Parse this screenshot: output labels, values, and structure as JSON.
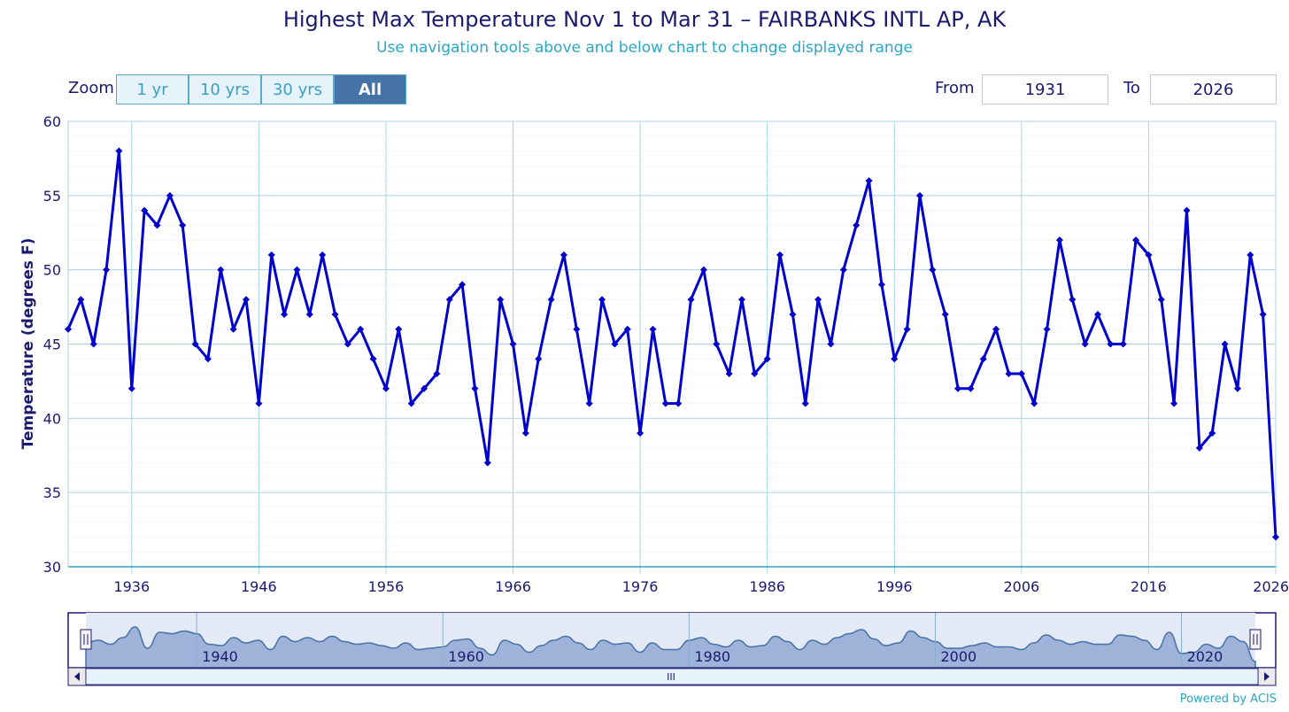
{
  "header": {
    "title": "Highest Max Temperature Nov 1 to Mar 31 – FAIRBANKS INTL AP, AK",
    "subtitle": "Use navigation tools above and below chart to change displayed range"
  },
  "zoom": {
    "label": "Zoom",
    "buttons": [
      "1 yr",
      "10 yrs",
      "30 yrs",
      "All"
    ],
    "active": "All"
  },
  "range": {
    "from_label": "From",
    "from_value": "1931",
    "to_label": "To",
    "to_value": "2026"
  },
  "navigator": {
    "labels": [
      "1940",
      "1960",
      "1980",
      "2000",
      "2020"
    ],
    "scroll_grip": "III"
  },
  "footer": {
    "credit": "Powered by ACIS"
  },
  "colors": {
    "series": "#0000cc",
    "navigator_fill": "#9fb3d9",
    "grid": "#a8d4e6"
  },
  "chart_data": {
    "type": "line",
    "title": "Highest Max Temperature Nov 1 to Mar 31 – FAIRBANKS INTL AP, AK",
    "ylabel": "Temperature (degrees F)",
    "xlabel": "",
    "ylim": [
      30,
      60
    ],
    "xlim": [
      1931,
      2026
    ],
    "yticks": [
      30,
      35,
      40,
      45,
      50,
      55,
      60
    ],
    "xticks": [
      1936,
      1946,
      1956,
      1966,
      1976,
      1986,
      1996,
      2006,
      2016,
      2026
    ],
    "grid": true,
    "legend": "none",
    "series": [
      {
        "x": [
          1931,
          1932,
          1933,
          1934,
          1935,
          1936,
          1937,
          1938,
          1939,
          1940,
          1941,
          1942,
          1943,
          1944,
          1945,
          1946,
          1947,
          1948,
          1949,
          1950,
          1951,
          1952,
          1953,
          1954,
          1955,
          1956,
          1957,
          1958,
          1959,
          1960,
          1961,
          1962,
          1963,
          1964,
          1965,
          1966,
          1967,
          1968,
          1969,
          1970,
          1971,
          1972,
          1973,
          1974,
          1975,
          1976,
          1977,
          1978,
          1979,
          1980,
          1981,
          1982,
          1983,
          1984,
          1985,
          1986,
          1987,
          1988,
          1989,
          1990,
          1991,
          1992,
          1993,
          1994,
          1995,
          1996,
          1997,
          1998,
          1999,
          2000,
          2001,
          2002,
          2003,
          2004,
          2005,
          2006,
          2007,
          2008,
          2009,
          2010,
          2011,
          2012,
          2013,
          2014,
          2015,
          2016,
          2017,
          2018,
          2019,
          2020,
          2021,
          2022,
          2023,
          2024,
          2025,
          2026
        ],
        "values": [
          46,
          48,
          45,
          50,
          58,
          42,
          54,
          53,
          55,
          53,
          45,
          44,
          50,
          46,
          48,
          41,
          51,
          47,
          50,
          47,
          51,
          47,
          45,
          46,
          44,
          42,
          46,
          41,
          42,
          43,
          48,
          49,
          42,
          37,
          48,
          45,
          39,
          44,
          48,
          51,
          46,
          41,
          48,
          45,
          46,
          39,
          46,
          41,
          41,
          48,
          50,
          45,
          43,
          48,
          43,
          44,
          51,
          47,
          41,
          48,
          45,
          50,
          53,
          56,
          49,
          44,
          46,
          55,
          50,
          47,
          42,
          42,
          44,
          46,
          43,
          43,
          41,
          46,
          52,
          48,
          45,
          47,
          45,
          45,
          52,
          51,
          48,
          41,
          54,
          38,
          39,
          45,
          42,
          51,
          47,
          32
        ]
      }
    ]
  }
}
